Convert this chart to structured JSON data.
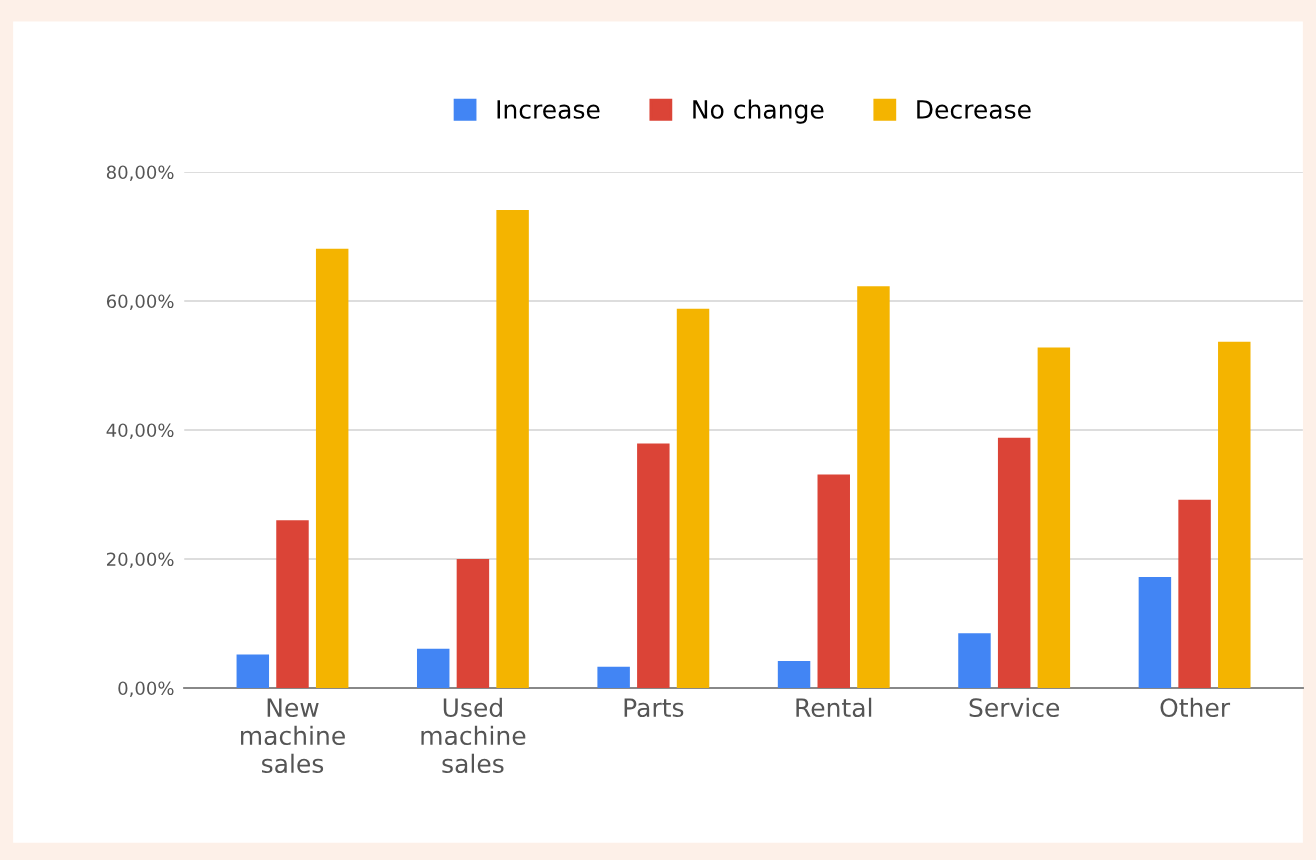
{
  "chart_data": {
    "type": "bar",
    "categories": [
      "New\nmachine\nsales",
      "Used\nmachine\nsales",
      "Parts",
      "Rental",
      "Service",
      "Other"
    ],
    "series": [
      {
        "name": "Increase",
        "color": "#4285f4",
        "values": [
          5.2,
          6.1,
          3.3,
          4.2,
          8.5,
          17.2
        ]
      },
      {
        "name": "No change",
        "color": "#db4437",
        "values": [
          26.0,
          20.0,
          37.9,
          33.1,
          38.8,
          29.2
        ]
      },
      {
        "name": "Decrease",
        "color": "#f4b400",
        "values": [
          68.1,
          74.1,
          58.8,
          62.3,
          52.8,
          53.7
        ]
      }
    ],
    "ylim": [
      0,
      80
    ],
    "yticks": [
      {
        "value": 0,
        "label": "0,00%"
      },
      {
        "value": 20,
        "label": "20,00%"
      },
      {
        "value": 40,
        "label": "40,00%"
      },
      {
        "value": 60,
        "label": "60,00%"
      },
      {
        "value": 80,
        "label": "80,00%"
      }
    ],
    "grid": "y",
    "legend": "top"
  }
}
